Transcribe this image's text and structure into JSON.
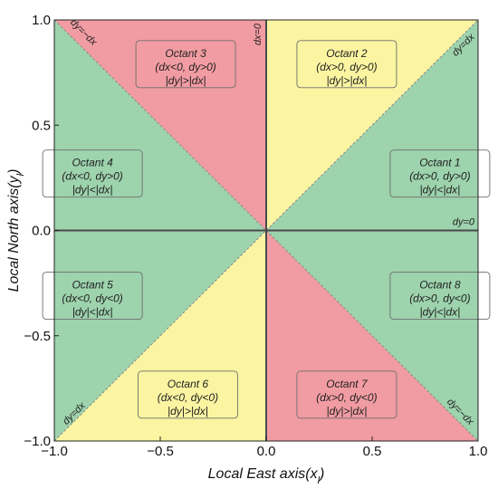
{
  "colors": {
    "green": "#9dd3ad",
    "red": "#f19ca2",
    "yellow": "#fbf5a2",
    "axis_line": "#4a4a4a",
    "diagonal": "#8a8a8a"
  },
  "chart_data": {
    "type": "diagram",
    "xlabel": "Local East axis(x",
    "xlabel_sub": "l",
    "xlabel_end": ")",
    "ylabel": "Local North axis(y",
    "ylabel_sub": "l",
    "ylabel_end": ")",
    "xlim": [
      -1.0,
      1.0
    ],
    "ylim": [
      -1.0,
      1.0
    ],
    "xticks": [
      {
        "value": -1.0,
        "label": "−1.0"
      },
      {
        "value": -0.5,
        "label": "−0.5"
      },
      {
        "value": 0.0,
        "label": "0.0"
      },
      {
        "value": 0.5,
        "label": "0.5"
      },
      {
        "value": 1.0,
        "label": "1.0"
      }
    ],
    "yticks": [
      {
        "value": 1.0,
        "label": "1.0"
      },
      {
        "value": 0.5,
        "label": "0.5"
      },
      {
        "value": 0.0,
        "label": "0.0"
      },
      {
        "value": -0.5,
        "label": "−0.5"
      },
      {
        "value": -1.0,
        "label": "−1.0"
      }
    ],
    "line_labels": {
      "dx0": "dx=0",
      "dy0": "dy=0",
      "dy_dx_top": "dy=dx",
      "dy_dx_bottom": "dy=dx",
      "dy_negdx_top": "dy=−dx",
      "dy_negdx_bottom": "dy=−dx"
    },
    "octants": [
      {
        "id": 1,
        "title": "Octant 1",
        "cond": "(dx>0, dy>0)",
        "ratio": "|dy|<|dx|",
        "color": "green",
        "cx": 0.82,
        "cy": 0.27
      },
      {
        "id": 2,
        "title": "Octant 2",
        "cond": "(dx>0, dy>0)",
        "ratio": "|dy|>|dx|",
        "color": "yellow",
        "cx": 0.38,
        "cy": 0.79
      },
      {
        "id": 3,
        "title": "Octant 3",
        "cond": "(dx<0, dy>0)",
        "ratio": "|dy|>|dx|",
        "color": "red",
        "cx": -0.38,
        "cy": 0.79
      },
      {
        "id": 4,
        "title": "Octant 4",
        "cond": "(dx<0, dy>0)",
        "ratio": "|dy|<|dx|",
        "color": "green",
        "cx": -0.82,
        "cy": 0.27
      },
      {
        "id": 5,
        "title": "Octant 5",
        "cond": "(dx<0, dy<0)",
        "ratio": "|dy|<|dx|",
        "color": "green",
        "cx": -0.82,
        "cy": -0.31
      },
      {
        "id": 6,
        "title": "Octant 6",
        "cond": "(dx<0, dy<0)",
        "ratio": "|dy|>|dx|",
        "color": "yellow",
        "cx": -0.37,
        "cy": -0.78
      },
      {
        "id": 7,
        "title": "Octant 7",
        "cond": "(dx>0, dy<0)",
        "ratio": "|dy|>|dx|",
        "color": "red",
        "cx": 0.38,
        "cy": -0.78
      },
      {
        "id": 8,
        "title": "Octant 8",
        "cond": "(dx>0, dy<0)",
        "ratio": "|dy|<|dx|",
        "color": "green",
        "cx": 0.82,
        "cy": -0.31
      }
    ]
  }
}
